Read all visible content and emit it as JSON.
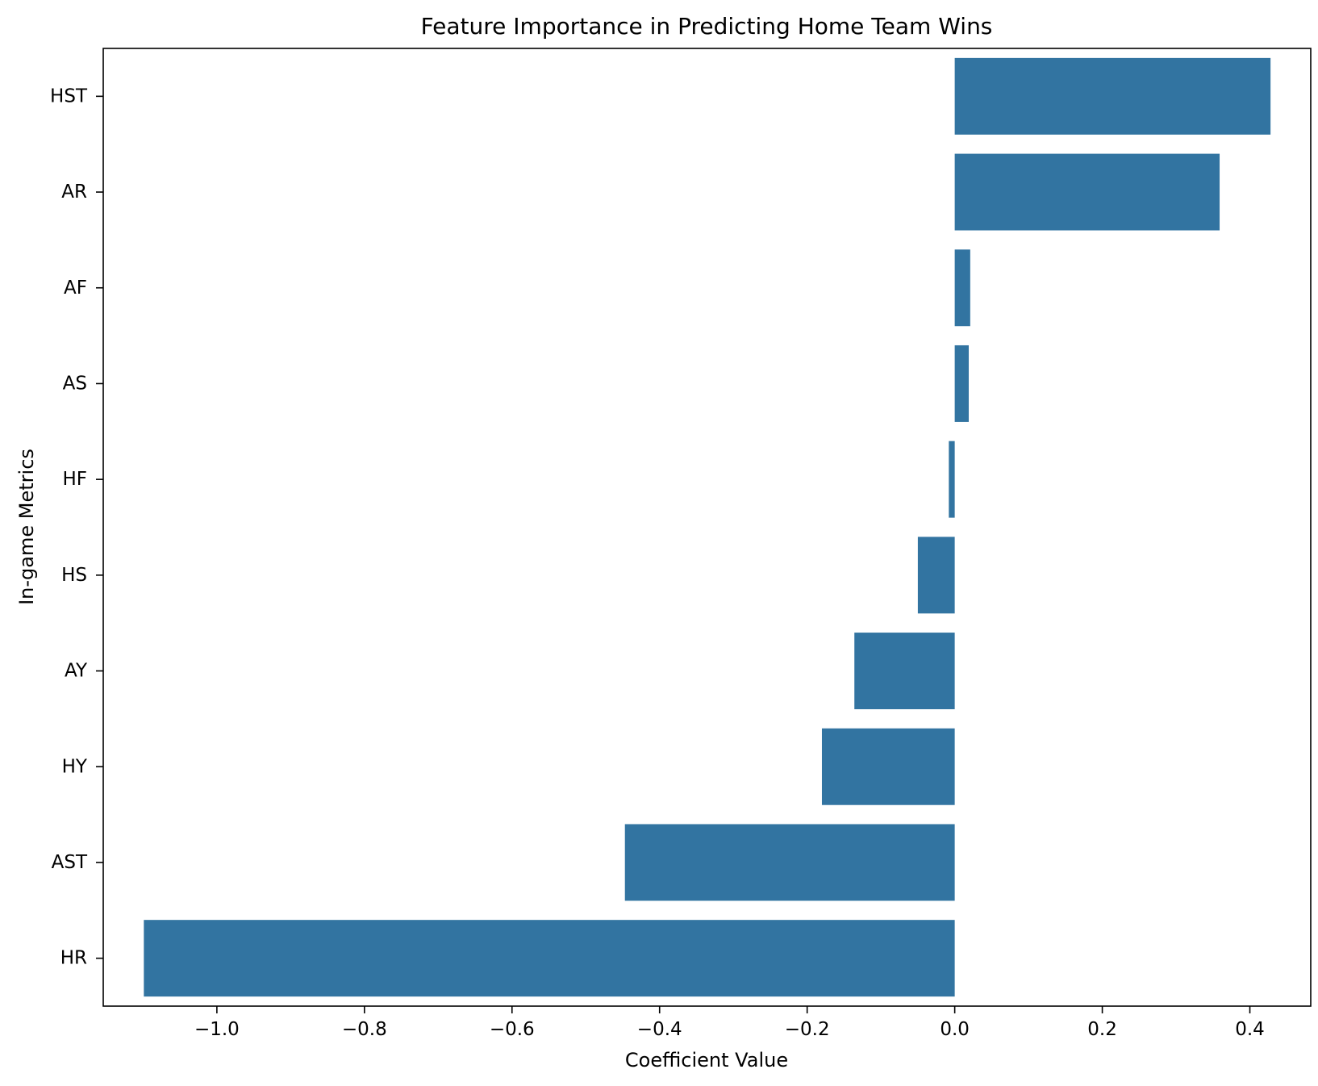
{
  "chart_data": {
    "type": "bar",
    "orientation": "horizontal",
    "title": "Feature Importance in Predicting Home Team Wins",
    "xlabel": "Coefficient Value",
    "ylabel": "In-game Metrics",
    "categories": [
      "HST",
      "AR",
      "AF",
      "AS",
      "HF",
      "HS",
      "AY",
      "HY",
      "AST",
      "HR"
    ],
    "values": [
      0.428,
      0.359,
      0.021,
      0.019,
      -0.008,
      -0.05,
      -0.136,
      -0.18,
      -0.447,
      -1.099
    ],
    "xlim": [
      -1.154,
      0.4825
    ],
    "xticks": [
      -1.0,
      -0.8,
      -0.6,
      -0.4,
      -0.2,
      0.0,
      0.2,
      0.4
    ],
    "xtick_labels": [
      "−1.0",
      "−0.8",
      "−0.6",
      "−0.4",
      "−0.2",
      "0.0",
      "0.2",
      "0.4"
    ],
    "bar_color": "#3274a1",
    "grid": false,
    "legend": false
  }
}
